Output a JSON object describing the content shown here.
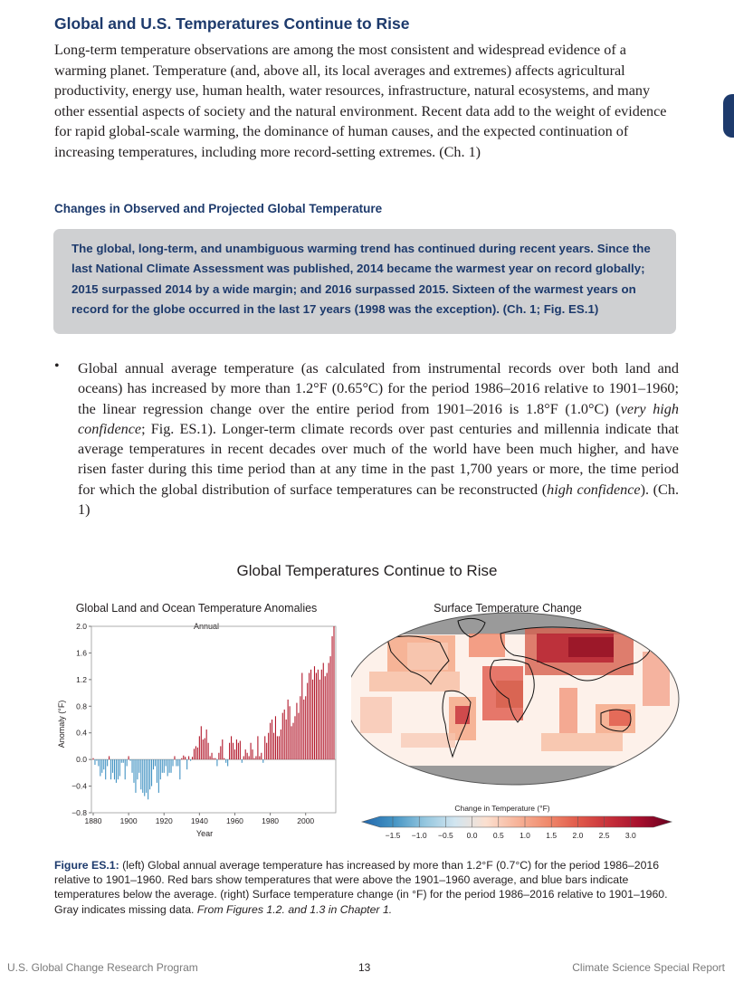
{
  "page": {
    "heading": "Global and U.S. Temperatures Continue to Rise",
    "intro": "Long-term temperature observations are among the most consistent and widespread evidence of a warming planet. Temperature (and, above all, its local averages and extremes) affects agricultural productivity, energy use, human health, water resources, infrastructure, natural ecosystems, and many other essential aspects of society and the natural environment. Recent data add to the weight of evidence for rapid global-scale warming, the dominance of human causes, and the expected continuation of increasing temperatures, including more record-setting extremes. (Ch. 1)",
    "subheading": "Changes in Observed and Projected Global Temperature",
    "key_finding": "The global, long-term, and unambiguous warming trend has continued during recent years. Since the last National Climate Assessment was published, 2014 became the warmest year on record globally; 2015 surpassed 2014 by a wide margin; and 2016 surpassed 2015. Sixteen of the warmest years on record for the globe occurred in the last 17 years (1998 was the exception). (Ch. 1; Fig. ES.1)",
    "bullet_a": "Global annual average temperature (as calculated from instrumental records over both land and oceans) has increased by more than 1.2°F (0.65°C) for the period 1986–2016 relative to 1901–1960; the linear regression change over the entire period from 1901–2016 is 1.8°F (1.0°C) (",
    "bullet_conf1": "very high confidence",
    "bullet_b": "; Fig. ES.1). Longer-term climate records over past centuries and millennia indicate that average temperatures in recent decades over much of the world have been much higher, and have risen faster during this time period than at any time in the past 1,700 years or more, the time period for which the global distribution of surface temperatures can be reconstructed (",
    "bullet_conf2": "high confidence",
    "bullet_c": "). (Ch. 1)"
  },
  "figure": {
    "title": "Global Temperatures Continue to Rise",
    "left_title": "Global Land and Ocean Temperature Anomalies",
    "right_title": "Surface Temperature Change",
    "colorbar_label": "Change in Temperature (°F)",
    "colorbar_ticks": [
      "−1.5",
      "−1.0",
      "−0.5",
      "0.0",
      "0.5",
      "1.0",
      "1.5",
      "2.0",
      "2.5",
      "3.0"
    ],
    "colors": {
      "warm": "#b2182b",
      "cool": "#4393c3",
      "missing": "#9a9a9a"
    }
  },
  "chart_data": {
    "type": "bar",
    "title": "Global Land and Ocean Temperature Anomalies",
    "subtitle": "Annual",
    "xlabel": "Year",
    "ylabel": "Anomaly (°F)",
    "xlim": [
      1880,
      2016
    ],
    "ylim": [
      -0.8,
      2.0
    ],
    "x_ticks": [
      "1880",
      "1900",
      "1920",
      "1940",
      "1960",
      "1980",
      "2000"
    ],
    "y_ticks": [
      "2.0",
      "1.6",
      "1.2",
      "0.8",
      "0.4",
      "0.0",
      "−0.4",
      "−0.8"
    ],
    "x": [
      1880,
      1881,
      1882,
      1883,
      1884,
      1885,
      1886,
      1887,
      1888,
      1889,
      1890,
      1891,
      1892,
      1893,
      1894,
      1895,
      1896,
      1897,
      1898,
      1899,
      1900,
      1901,
      1902,
      1903,
      1904,
      1905,
      1906,
      1907,
      1908,
      1909,
      1910,
      1911,
      1912,
      1913,
      1914,
      1915,
      1916,
      1917,
      1918,
      1919,
      1920,
      1921,
      1922,
      1923,
      1924,
      1925,
      1926,
      1927,
      1928,
      1929,
      1930,
      1931,
      1932,
      1933,
      1934,
      1935,
      1936,
      1937,
      1938,
      1939,
      1940,
      1941,
      1942,
      1943,
      1944,
      1945,
      1946,
      1947,
      1948,
      1949,
      1950,
      1951,
      1952,
      1953,
      1954,
      1955,
      1956,
      1957,
      1958,
      1959,
      1960,
      1961,
      1962,
      1963,
      1964,
      1965,
      1966,
      1967,
      1968,
      1969,
      1970,
      1971,
      1972,
      1973,
      1974,
      1975,
      1976,
      1977,
      1978,
      1979,
      1980,
      1981,
      1982,
      1983,
      1984,
      1985,
      1986,
      1987,
      1988,
      1989,
      1990,
      1991,
      1992,
      1993,
      1994,
      1995,
      1996,
      1997,
      1998,
      1999,
      2000,
      2001,
      2002,
      2003,
      2004,
      2005,
      2006,
      2007,
      2008,
      2009,
      2010,
      2011,
      2012,
      2013,
      2014,
      2015,
      2016
    ],
    "values": [
      0.02,
      -0.08,
      -0.02,
      -0.1,
      -0.25,
      -0.2,
      -0.15,
      -0.3,
      -0.1,
      0.05,
      -0.3,
      -0.2,
      -0.3,
      -0.35,
      -0.3,
      -0.25,
      -0.05,
      -0.05,
      -0.3,
      -0.1,
      0.05,
      -0.02,
      -0.2,
      -0.35,
      -0.5,
      -0.3,
      -0.2,
      -0.45,
      -0.5,
      -0.55,
      -0.5,
      -0.6,
      -0.45,
      -0.4,
      -0.15,
      -0.1,
      -0.35,
      -0.5,
      -0.3,
      -0.2,
      -0.2,
      -0.1,
      -0.25,
      -0.2,
      -0.2,
      -0.1,
      0.05,
      -0.1,
      -0.1,
      -0.3,
      0.02,
      0.06,
      0.04,
      -0.15,
      0.05,
      -0.02,
      0.04,
      0.16,
      0.2,
      0.18,
      0.35,
      0.5,
      0.3,
      0.32,
      0.45,
      0.25,
      0.05,
      0.1,
      0.02,
      0.02,
      -0.1,
      0.1,
      0.2,
      0.3,
      0.02,
      -0.05,
      -0.1,
      0.25,
      0.35,
      0.25,
      0.15,
      0.3,
      0.25,
      0.28,
      -0.05,
      0.05,
      0.15,
      0.1,
      0.05,
      0.25,
      0.15,
      0.02,
      0.05,
      0.35,
      0.05,
      0.1,
      -0.05,
      0.35,
      0.25,
      0.4,
      0.55,
      0.6,
      0.4,
      0.65,
      0.35,
      0.35,
      0.45,
      0.7,
      0.75,
      0.6,
      0.9,
      0.8,
      0.5,
      0.55,
      0.65,
      0.85,
      0.7,
      0.95,
      1.3,
      0.9,
      0.95,
      1.15,
      1.3,
      1.35,
      1.2,
      1.4,
      1.3,
      1.35,
      1.2,
      1.35,
      1.45,
      1.25,
      1.3,
      1.45,
      1.55,
      1.85,
      2.0
    ]
  },
  "footer": {
    "left": "U.S. Global Change Research Program",
    "page_number": "13",
    "right": "Climate Science Special Report"
  },
  "caption": {
    "label": "Figure ES.1:",
    "text": " (left) Global annual average temperature has increased by more than 1.2°F (0.7°C) for the period 1986–2016 relative to 1901–1960. Red bars show temperatures that were above the 1901–1960 average, and blue bars indicate temperatures below the average. (right) Surface temperature change (in °F) for the period 1986–2016 relative to 1901–1960. Gray indicates missing data. ",
    "source": "From Figures 1.2. and 1.3 in Chapter 1."
  }
}
